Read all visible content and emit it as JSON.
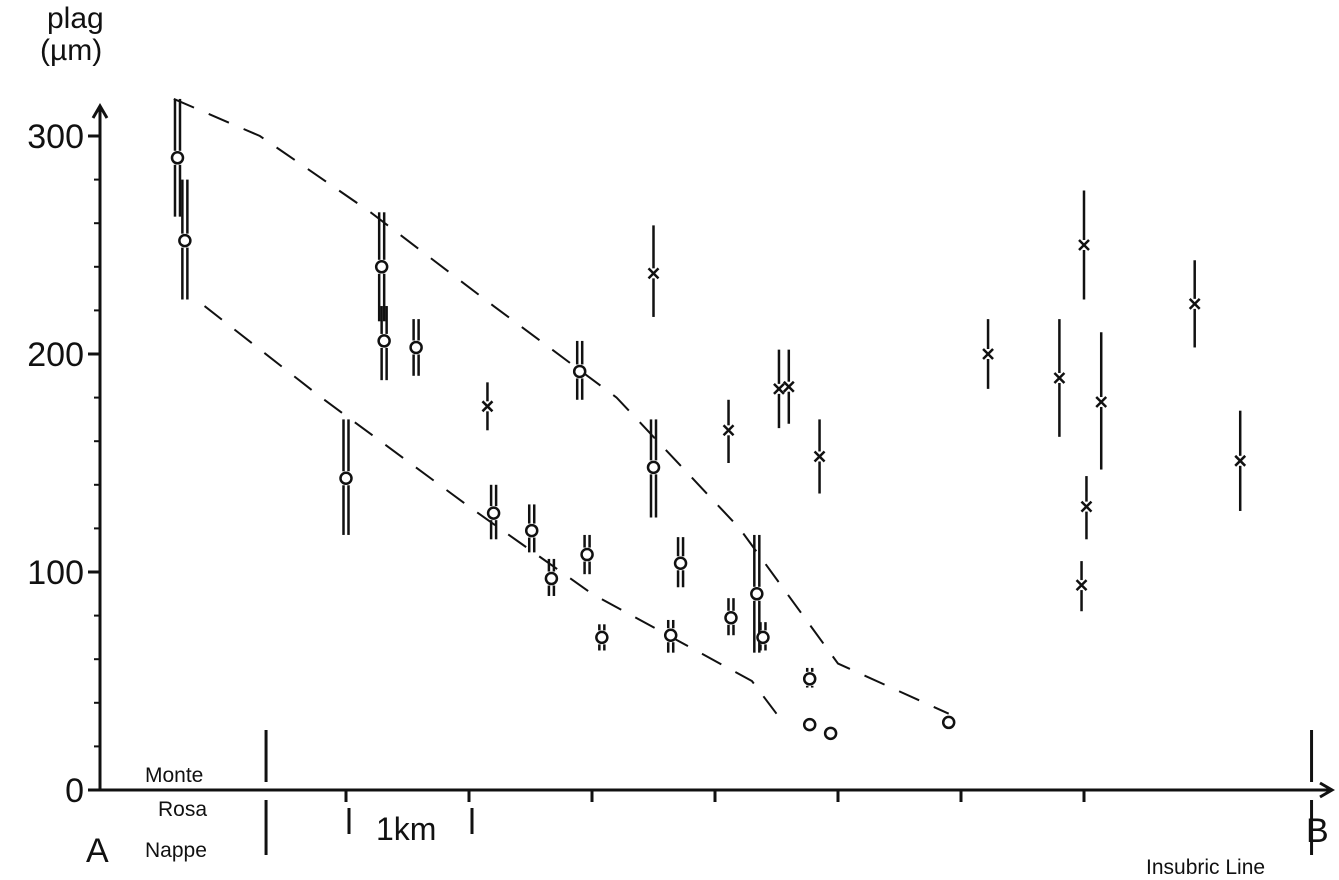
{
  "chart_data": {
    "type": "scatter",
    "y_axis": {
      "label_line1": "plag",
      "label_line2": "(µm)",
      "range": [
        0,
        300
      ],
      "ticks": [
        0,
        100,
        200,
        300
      ],
      "tick_labels": [
        "0",
        "100",
        "200",
        "300"
      ],
      "minor_step": 20
    },
    "x_axis": {
      "start_label": "A",
      "end_label": "B",
      "range": [
        0,
        10
      ],
      "ticks": [
        2,
        3,
        4,
        5,
        6,
        7,
        8
      ],
      "unit": "km",
      "scale_bar": {
        "from": 2,
        "to": 3,
        "label": "1km"
      },
      "zones": [
        {
          "at": 1.35,
          "label_lines": [
            "Monte",
            "Rosa",
            "Nappe"
          ]
        },
        {
          "at": 9.85,
          "label_lines": [
            "Insubric Line"
          ]
        }
      ]
    },
    "envelope": {
      "upper": [
        [
          0.6,
          317
        ],
        [
          1.3,
          300
        ],
        [
          2.2,
          265
        ],
        [
          3.2,
          222
        ],
        [
          4.2,
          180
        ],
        [
          5.2,
          120
        ],
        [
          6.0,
          58
        ],
        [
          6.9,
          35
        ]
      ],
      "lower": [
        [
          0.85,
          222
        ],
        [
          1.8,
          180
        ],
        [
          3.0,
          130
        ],
        [
          4.0,
          90
        ],
        [
          5.3,
          50
        ],
        [
          5.5,
          35
        ]
      ]
    },
    "series": [
      {
        "marker": "circle",
        "points": [
          {
            "x": 0.63,
            "y": 290,
            "range": [
              263,
              317
            ],
            "lines": 2
          },
          {
            "x": 0.69,
            "y": 252,
            "range": [
              225,
              280
            ],
            "lines": 2
          },
          {
            "x": 2.0,
            "y": 143,
            "range": [
              117,
              170
            ],
            "lines": 2
          },
          {
            "x": 2.29,
            "y": 240,
            "range": [
              215,
              265
            ],
            "lines": 2
          },
          {
            "x": 2.31,
            "y": 206,
            "range": [
              188,
              222
            ],
            "lines": 2
          },
          {
            "x": 2.57,
            "y": 203,
            "range": [
              190,
              216
            ],
            "lines": 2
          },
          {
            "x": 3.2,
            "y": 127,
            "range": [
              115,
              140
            ],
            "lines": 2
          },
          {
            "x": 3.51,
            "y": 119,
            "range": [
              109,
              131
            ],
            "lines": 2
          },
          {
            "x": 3.67,
            "y": 97,
            "range": [
              89,
              106
            ],
            "lines": 2
          },
          {
            "x": 3.9,
            "y": 192,
            "range": [
              179,
              206
            ],
            "lines": 2
          },
          {
            "x": 3.96,
            "y": 108,
            "range": [
              99,
              117
            ],
            "lines": 2
          },
          {
            "x": 4.08,
            "y": 70,
            "range": [
              64,
              76
            ],
            "lines": 2
          },
          {
            "x": 4.5,
            "y": 148,
            "range": [
              125,
              170
            ],
            "lines": 2
          },
          {
            "x": 4.64,
            "y": 71,
            "range": [
              63,
              78
            ],
            "lines": 2
          },
          {
            "x": 4.72,
            "y": 104,
            "range": [
              93,
              116
            ],
            "lines": 2
          },
          {
            "x": 5.13,
            "y": 79,
            "range": [
              71,
              88
            ],
            "lines": 2
          },
          {
            "x": 5.34,
            "y": 90,
            "range": [
              63,
              117
            ],
            "lines": 2
          },
          {
            "x": 5.39,
            "y": 70,
            "range": [
              64,
              77
            ],
            "lines": 2
          },
          {
            "x": 5.77,
            "y": 51,
            "range": [
              47,
              56
            ],
            "lines": 2
          },
          {
            "x": 5.77,
            "y": 30,
            "range": null,
            "lines": 0
          },
          {
            "x": 5.94,
            "y": 26,
            "range": null,
            "lines": 0
          },
          {
            "x": 6.9,
            "y": 31,
            "range": null,
            "lines": 0
          }
        ]
      },
      {
        "marker": "cross",
        "points": [
          {
            "x": 3.15,
            "y": 176,
            "range": [
              165,
              187
            ]
          },
          {
            "x": 4.5,
            "y": 237,
            "range": [
              217,
              259
            ]
          },
          {
            "x": 5.11,
            "y": 165,
            "range": [
              150,
              179
            ]
          },
          {
            "x": 5.52,
            "y": 184,
            "range": [
              166,
              202
            ]
          },
          {
            "x": 5.6,
            "y": 185,
            "range": [
              168,
              202
            ]
          },
          {
            "x": 5.85,
            "y": 153,
            "range": [
              136,
              170
            ]
          },
          {
            "x": 7.22,
            "y": 200,
            "range": [
              184,
              216
            ]
          },
          {
            "x": 7.8,
            "y": 189,
            "range": [
              162,
              216
            ]
          },
          {
            "x": 7.98,
            "y": 94,
            "range": [
              82,
              105
            ]
          },
          {
            "x": 8.0,
            "y": 250,
            "range": [
              225,
              275
            ]
          },
          {
            "x": 8.02,
            "y": 130,
            "range": [
              115,
              144
            ]
          },
          {
            "x": 8.14,
            "y": 178,
            "range": [
              147,
              210
            ]
          },
          {
            "x": 8.9,
            "y": 223,
            "range": [
              203,
              243
            ]
          },
          {
            "x": 9.27,
            "y": 151,
            "range": [
              128,
              174
            ]
          }
        ]
      }
    ]
  }
}
